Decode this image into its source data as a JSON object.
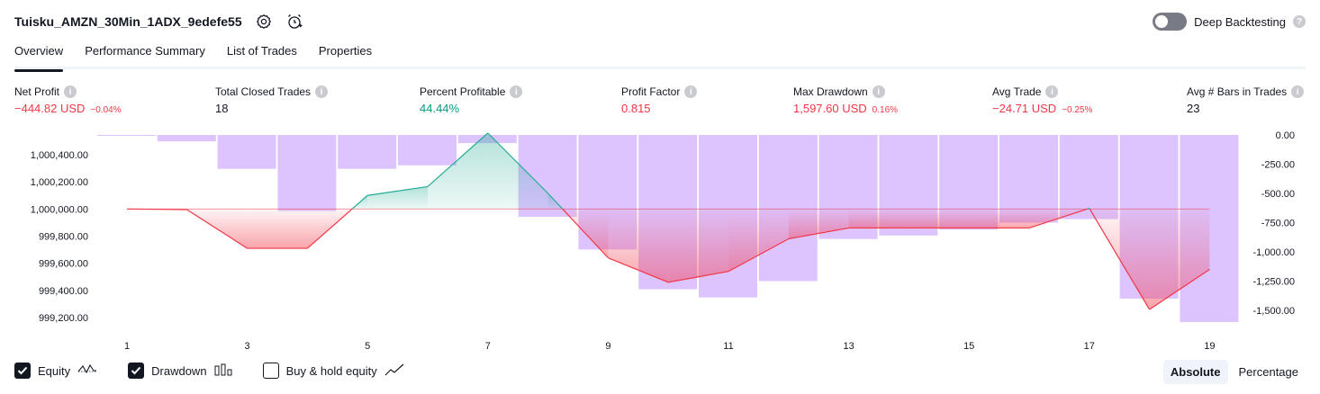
{
  "header": {
    "strategy_name": "Tuisku_AMZN_30Min_1ADX_9edefe55",
    "deep_backtesting_label": "Deep Backtesting",
    "deep_backtesting_enabled": false
  },
  "tabs": [
    {
      "label": "Overview",
      "active": true
    },
    {
      "label": "Performance Summary",
      "active": false
    },
    {
      "label": "List of Trades",
      "active": false
    },
    {
      "label": "Properties",
      "active": false
    }
  ],
  "metrics": [
    {
      "label": "Net Profit",
      "value": "−444.82 USD",
      "sub": "−0.04%",
      "tone": "neg"
    },
    {
      "label": "Total Closed Trades",
      "value": "18",
      "sub": "",
      "tone": "neutral"
    },
    {
      "label": "Percent Profitable",
      "value": "44.44%",
      "sub": "",
      "tone": "pos"
    },
    {
      "label": "Profit Factor",
      "value": "0.815",
      "sub": "",
      "tone": "neg"
    },
    {
      "label": "Max Drawdown",
      "value": "1,597.60 USD",
      "sub": "0.16%",
      "tone": "neg"
    },
    {
      "label": "Avg Trade",
      "value": "−24.71 USD",
      "sub": "−0.25%",
      "tone": "neg"
    },
    {
      "label": "Avg # Bars in Trades",
      "value": "23",
      "sub": "",
      "tone": "neutral"
    }
  ],
  "chart_data": {
    "type": "area",
    "left_axis": {
      "ticks": [
        "1,000,400.00",
        "1,000,200.00",
        "1,000,000.00",
        "999,800.00",
        "999,600.00",
        "999,400.00",
        "999,200.00"
      ],
      "range": [
        999100,
        1000560
      ]
    },
    "right_axis": {
      "ticks": [
        "0.00",
        "-250.00",
        "-500.00",
        "-750.00",
        "-1,000.00",
        "-1,250.00",
        "-1,500.00"
      ],
      "range": [
        -1700,
        40
      ]
    },
    "x_ticks": [
      "1",
      "3",
      "5",
      "7",
      "9",
      "11",
      "13",
      "15",
      "17",
      "19"
    ],
    "baseline": 1000000,
    "equity": {
      "x": [
        1,
        2,
        3,
        4,
        5,
        6,
        7,
        8,
        9,
        10,
        11,
        12,
        13,
        14,
        15,
        16,
        17,
        18,
        19
      ],
      "y": [
        1000000,
        999995,
        999710,
        999710,
        1000100,
        1000165,
        1000560,
        1000115,
        999640,
        999460,
        999540,
        999780,
        999860,
        999860,
        999860,
        999860,
        1000005,
        999260,
        999555
      ]
    },
    "drawdown": {
      "x": [
        1,
        2,
        3,
        4,
        5,
        6,
        7,
        8,
        9,
        10,
        11,
        12,
        13,
        14,
        15,
        16,
        17,
        18,
        19
      ],
      "y": [
        -5,
        -55,
        -290,
        -650,
        -290,
        -260,
        -70,
        -700,
        -980,
        -1320,
        -1390,
        -1250,
        -890,
        -860,
        -810,
        -750,
        -720,
        -1400,
        -1600
      ]
    },
    "legend": [
      {
        "label": "Equity",
        "checked": true
      },
      {
        "label": "Drawdown",
        "checked": true
      },
      {
        "label": "Buy & hold equity",
        "checked": false
      }
    ],
    "colors": {
      "equity_up": "#22ab94",
      "equity_down": "#f23645",
      "drawdown": "#d7baff"
    }
  },
  "view_toggle": {
    "options": [
      "Absolute",
      "Percentage"
    ],
    "selected": "Absolute"
  }
}
